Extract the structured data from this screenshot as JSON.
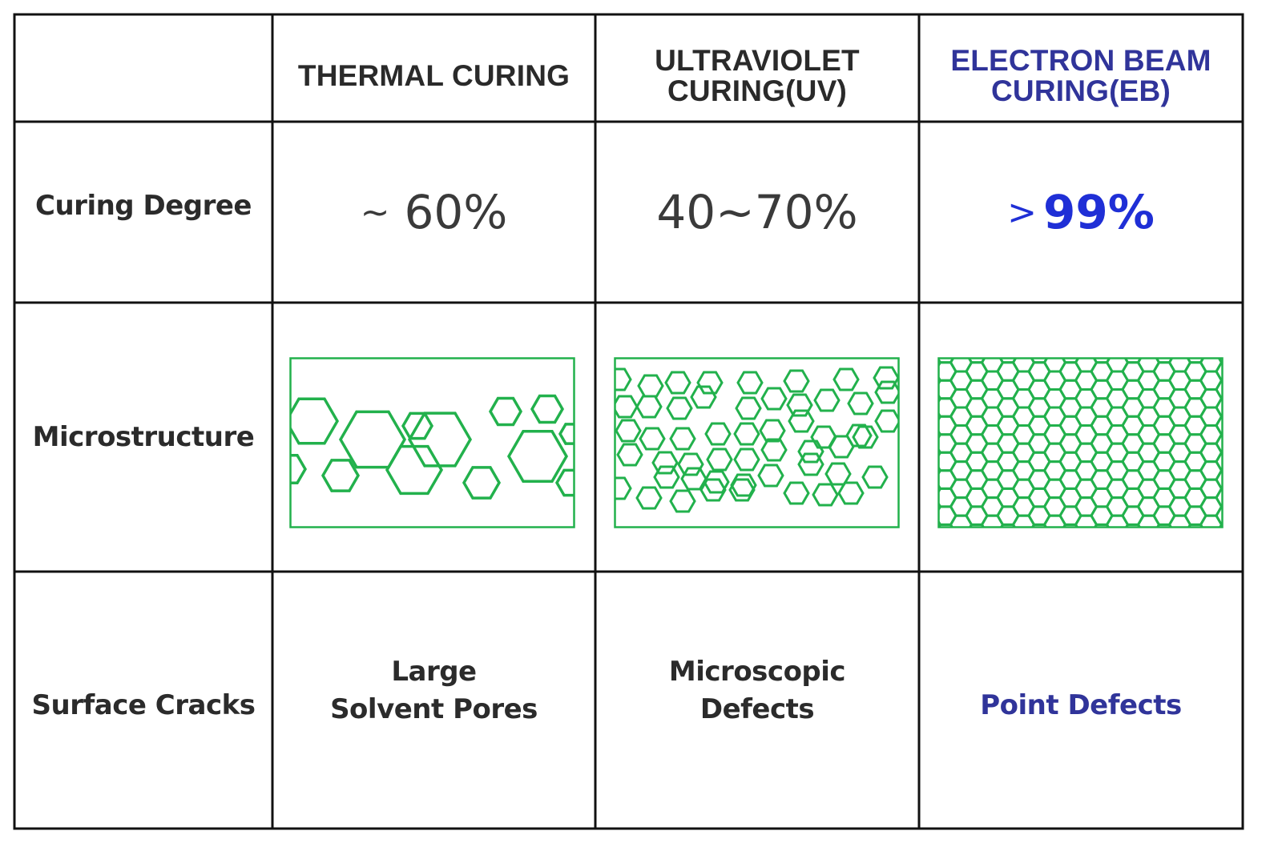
{
  "columns": [
    {
      "line1": "",
      "line2": ""
    },
    {
      "line1": "THERMAL CURING",
      "line2": ""
    },
    {
      "line1": "ULTRAVIOLET",
      "line2": "CURING(UV)"
    },
    {
      "line1": "ELECTRON BEAM",
      "line2": "CURING(EB)"
    }
  ],
  "rows": {
    "curing_degree": {
      "label": "Curing Degree",
      "thermal": {
        "symbol": "~",
        "value": "60%"
      },
      "uv": {
        "value": "40~70%"
      },
      "eb": {
        "symbol": ">",
        "value": "99%"
      }
    },
    "microstructure": {
      "label": "Microstructure",
      "panel_color": "#22b14c"
    },
    "surface_cracks": {
      "label": "Surface Cracks",
      "thermal": {
        "line1": "Large",
        "line2": "Solvent Pores"
      },
      "uv": {
        "line1": "Microscopic",
        "line2": "Defects"
      },
      "eb": {
        "line1": "Point Defects"
      }
    }
  },
  "colors": {
    "grid": "#111111",
    "text": "#2b2b2b",
    "eb_header": "#30349a",
    "eb_value": "#1f2fd6",
    "hexagon": "#22b14c"
  }
}
